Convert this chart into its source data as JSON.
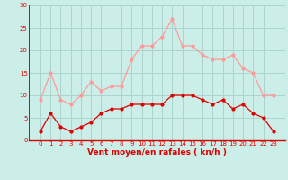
{
  "hours": [
    0,
    1,
    2,
    3,
    4,
    5,
    6,
    7,
    8,
    9,
    10,
    11,
    12,
    13,
    14,
    15,
    16,
    17,
    18,
    19,
    20,
    21,
    22,
    23
  ],
  "wind_avg": [
    2,
    6,
    3,
    2,
    3,
    4,
    6,
    7,
    7,
    8,
    8,
    8,
    8,
    10,
    10,
    10,
    9,
    8,
    9,
    7,
    8,
    6,
    5,
    2
  ],
  "wind_gust": [
    9,
    15,
    9,
    8,
    10,
    13,
    11,
    12,
    12,
    18,
    21,
    21,
    23,
    27,
    21,
    21,
    19,
    18,
    18,
    19,
    16,
    15,
    10,
    10
  ],
  "bg_color": "#cceee8",
  "grid_color": "#aad4ce",
  "avg_color": "#dd0000",
  "gust_color": "#ff9999",
  "xlabel": "Vent moyen/en rafales ( kn/h )",
  "xlabel_color": "#dd0000",
  "tick_color": "#dd0000",
  "ylim": [
    0,
    30
  ],
  "yticks": [
    0,
    5,
    10,
    15,
    20,
    25,
    30
  ],
  "marker_size": 2.0,
  "line_width": 0.9,
  "title_fontsize": 6.0,
  "xlabel_fontsize": 6.5,
  "tick_fontsize": 5.0
}
